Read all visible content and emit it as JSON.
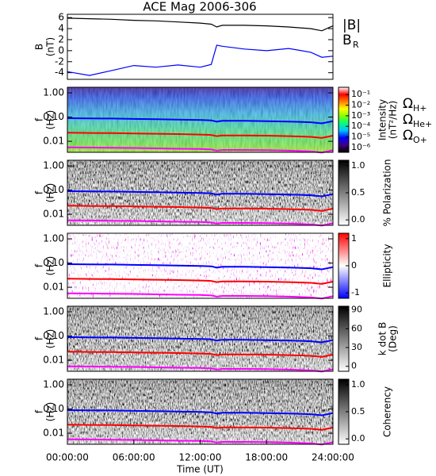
{
  "chart_data": [
    {
      "type": "line",
      "title": "ACE Mag 2006-306",
      "y_label": [
        "B",
        "(nT)"
      ],
      "x": [
        0,
        2,
        4,
        6,
        8,
        10,
        12,
        13,
        13.5,
        14,
        16,
        18,
        20,
        22,
        23,
        24
      ],
      "xlim": [
        0,
        24
      ],
      "ylim": [
        -5.2,
        6.6
      ],
      "yticks": [
        6,
        4,
        2,
        0,
        -2,
        -4
      ],
      "series": [
        {
          "name": "|B|",
          "color": "#000000",
          "values": [
            5.9,
            5.8,
            5.7,
            5.5,
            5.4,
            5.2,
            5.0,
            4.8,
            4.3,
            4.6,
            4.6,
            4.5,
            4.3,
            4.0,
            3.6,
            4.5
          ]
        },
        {
          "name": "B",
          "name_sub": "R",
          "color": "#0000ff",
          "values": [
            -3.8,
            -4.5,
            -3.6,
            -2.7,
            -3.0,
            -2.6,
            -3.0,
            -2.5,
            1.0,
            0.8,
            0.3,
            0.0,
            0.4,
            -0.3,
            -1.2,
            -1.0
          ]
        }
      ]
    },
    {
      "type": "spectrogram",
      "y_label": [
        "f",
        "(Hz)"
      ],
      "y_scale": "log",
      "ylim": [
        0.0035,
        1.7
      ],
      "yticks": [
        {
          "value": 1,
          "label": "1.00"
        },
        {
          "value": 0.1,
          "label": "0.10"
        },
        {
          "value": 0.01,
          "label": "0.01"
        }
      ],
      "x": [
        0,
        2,
        4,
        6,
        8,
        10,
        12,
        13,
        13.5,
        14,
        16,
        18,
        20,
        22,
        23,
        24
      ],
      "xlim": [
        0,
        24
      ],
      "series": [
        {
          "name": "Ω",
          "name_sub": "H+",
          "color": "#0000ff",
          "values": [
            0.09,
            0.088,
            0.087,
            0.084,
            0.082,
            0.079,
            0.076,
            0.073,
            0.065,
            0.07,
            0.07,
            0.068,
            0.065,
            0.061,
            0.055,
            0.068
          ]
        },
        {
          "name": "Ω",
          "name_sub": "He+",
          "color": "#ff0000",
          "values": [
            0.0225,
            0.022,
            0.0217,
            0.021,
            0.0205,
            0.0198,
            0.019,
            0.0183,
            0.0163,
            0.0175,
            0.0175,
            0.017,
            0.0163,
            0.0152,
            0.0137,
            0.017
          ]
        },
        {
          "name": "Ω",
          "name_sub": "O+",
          "color": "#ff00ff",
          "values": [
            0.0056,
            0.0055,
            0.0054,
            0.0053,
            0.0051,
            0.0049,
            0.0048,
            0.0046,
            0.0041,
            0.0044,
            0.0044,
            0.0043,
            0.0041,
            0.0038,
            0.0034,
            0.0043
          ]
        }
      ],
      "colorbar": {
        "label": [
          "Intensity",
          "(nT²/Hz)"
        ],
        "scale": "log",
        "lim": [
          3.5e-07,
          0.49
        ],
        "ticks": [
          {
            "value": 0.1,
            "label": "10⁻¹"
          },
          {
            "value": 0.01,
            "label": "10⁻²"
          },
          {
            "value": 0.001,
            "label": "10⁻³"
          },
          {
            "value": 0.0001,
            "label": "10⁻⁴"
          },
          {
            "value": 1e-05,
            "label": "10⁻⁵"
          },
          {
            "value": 1e-06,
            "label": "10⁻⁶"
          }
        ],
        "colors": [
          "#000000",
          "#400080",
          "#0000ff",
          "#00c0ff",
          "#00ff80",
          "#80ff00",
          "#ffff00",
          "#ff8000",
          "#ff0000",
          "#ffffff"
        ]
      }
    },
    {
      "type": "spectrogram",
      "y_label": [
        "f",
        "(Hz)"
      ],
      "y_scale": "log",
      "ylim": [
        0.0035,
        1.7
      ],
      "yticks": [
        {
          "value": 1,
          "label": "1.00"
        },
        {
          "value": 0.1,
          "label": "0.10"
        },
        {
          "value": 0.01,
          "label": "0.01"
        }
      ],
      "x": [
        0,
        2,
        4,
        6,
        8,
        10,
        12,
        13,
        13.5,
        14,
        16,
        18,
        20,
        22,
        23,
        24
      ],
      "xlim": [
        0,
        24
      ],
      "series": [
        {
          "color": "#0000ff",
          "values": [
            0.09,
            0.088,
            0.087,
            0.084,
            0.082,
            0.079,
            0.076,
            0.073,
            0.065,
            0.07,
            0.07,
            0.068,
            0.065,
            0.061,
            0.055,
            0.068
          ]
        },
        {
          "color": "#ff0000",
          "values": [
            0.0225,
            0.022,
            0.0217,
            0.021,
            0.0205,
            0.0198,
            0.019,
            0.0183,
            0.0163,
            0.0175,
            0.0175,
            0.017,
            0.0163,
            0.0152,
            0.0137,
            0.017
          ]
        },
        {
          "color": "#ff00ff",
          "values": [
            0.0056,
            0.0055,
            0.0054,
            0.0053,
            0.0051,
            0.0049,
            0.0048,
            0.0046,
            0.0041,
            0.0044,
            0.0044,
            0.0043,
            0.0041,
            0.0038,
            0.0034,
            0.0043
          ]
        }
      ],
      "colorbar": {
        "label": [
          "% Polarization"
        ],
        "lim": [
          -0.1,
          1.1
        ],
        "ticks": [
          {
            "value": 1,
            "label": "1.0"
          },
          0.5,
          {
            "value": 0,
            "label": "0.0"
          }
        ],
        "colors": [
          "#ffffff",
          "#000000"
        ]
      }
    },
    {
      "type": "spectrogram",
      "y_label": [
        "f",
        "(Hz)"
      ],
      "y_scale": "log",
      "ylim": [
        0.0035,
        1.7
      ],
      "yticks": [
        {
          "value": 1,
          "label": "1.00"
        },
        {
          "value": 0.1,
          "label": "0.10"
        },
        {
          "value": 0.01,
          "label": "0.01"
        }
      ],
      "x": [
        0,
        2,
        4,
        6,
        8,
        10,
        12,
        13,
        13.5,
        14,
        16,
        18,
        20,
        22,
        23,
        24
      ],
      "xlim": [
        0,
        24
      ],
      "series": [
        {
          "color": "#0000ff",
          "values": [
            0.09,
            0.088,
            0.087,
            0.084,
            0.082,
            0.079,
            0.076,
            0.073,
            0.065,
            0.07,
            0.07,
            0.068,
            0.065,
            0.061,
            0.055,
            0.068
          ]
        },
        {
          "color": "#ff0000",
          "values": [
            0.0225,
            0.022,
            0.0217,
            0.021,
            0.0205,
            0.0198,
            0.019,
            0.0183,
            0.0163,
            0.0175,
            0.0175,
            0.017,
            0.0163,
            0.0152,
            0.0137,
            0.017
          ]
        },
        {
          "color": "#ff00ff",
          "values": [
            0.0056,
            0.0055,
            0.0054,
            0.0053,
            0.0051,
            0.0049,
            0.0048,
            0.0046,
            0.0041,
            0.0044,
            0.0044,
            0.0043,
            0.0041,
            0.0038,
            0.0034,
            0.0043
          ]
        }
      ],
      "colorbar": {
        "label": [
          "Ellipticity"
        ],
        "lim": [
          -1.2,
          1.2
        ],
        "ticks": [
          1,
          0,
          -1
        ],
        "colors": [
          "#0000ff",
          "#ffffff",
          "#ff0000"
        ]
      }
    },
    {
      "type": "spectrogram",
      "y_label": [
        "f",
        "(Hz)"
      ],
      "y_scale": "log",
      "ylim": [
        0.0035,
        1.7
      ],
      "yticks": [
        {
          "value": 1,
          "label": "1.00"
        },
        {
          "value": 0.1,
          "label": "0.10"
        },
        {
          "value": 0.01,
          "label": "0.01"
        }
      ],
      "x": [
        0,
        2,
        4,
        6,
        8,
        10,
        12,
        13,
        13.5,
        14,
        16,
        18,
        20,
        22,
        23,
        24
      ],
      "xlim": [
        0,
        24
      ],
      "series": [
        {
          "color": "#0000ff",
          "values": [
            0.09,
            0.088,
            0.087,
            0.084,
            0.082,
            0.079,
            0.076,
            0.073,
            0.065,
            0.07,
            0.07,
            0.068,
            0.065,
            0.061,
            0.055,
            0.068
          ]
        },
        {
          "color": "#ff0000",
          "values": [
            0.0225,
            0.022,
            0.0217,
            0.021,
            0.0205,
            0.0198,
            0.019,
            0.0183,
            0.0163,
            0.0175,
            0.0175,
            0.017,
            0.0163,
            0.0152,
            0.0137,
            0.017
          ]
        },
        {
          "color": "#ff00ff",
          "values": [
            0.0056,
            0.0055,
            0.0054,
            0.0053,
            0.0051,
            0.0049,
            0.0048,
            0.0046,
            0.0041,
            0.0044,
            0.0044,
            0.0043,
            0.0041,
            0.0038,
            0.0034,
            0.0043
          ]
        }
      ],
      "colorbar": {
        "label": [
          "k dot B",
          "(Deg)"
        ],
        "lim": [
          -8,
          96
        ],
        "ticks": [
          90,
          60,
          30,
          0
        ],
        "colors": [
          "#ffffff",
          "#000000"
        ]
      }
    },
    {
      "type": "spectrogram",
      "y_label": [
        "f",
        "(Hz)"
      ],
      "y_scale": "log",
      "ylim": [
        0.0035,
        1.7
      ],
      "yticks": [
        {
          "value": 1,
          "label": "1.00"
        },
        {
          "value": 0.1,
          "label": "0.10"
        },
        {
          "value": 0.01,
          "label": "0.01"
        }
      ],
      "x": [
        0,
        2,
        4,
        6,
        8,
        10,
        12,
        13,
        13.5,
        14,
        16,
        18,
        20,
        22,
        23,
        24
      ],
      "xlim": [
        0,
        24
      ],
      "series": [
        {
          "color": "#0000ff",
          "values": [
            0.09,
            0.088,
            0.087,
            0.084,
            0.082,
            0.079,
            0.076,
            0.073,
            0.065,
            0.07,
            0.07,
            0.068,
            0.065,
            0.061,
            0.055,
            0.068
          ]
        },
        {
          "color": "#ff0000",
          "values": [
            0.0225,
            0.022,
            0.0217,
            0.021,
            0.0205,
            0.0198,
            0.019,
            0.0183,
            0.0163,
            0.0175,
            0.0175,
            0.017,
            0.0163,
            0.0152,
            0.0137,
            0.017
          ]
        },
        {
          "color": "#ff00ff",
          "values": [
            0.0056,
            0.0055,
            0.0054,
            0.0053,
            0.0051,
            0.0049,
            0.0048,
            0.0046,
            0.0041,
            0.0044,
            0.0044,
            0.0043,
            0.0041,
            0.0038,
            0.0034,
            0.0043
          ]
        }
      ],
      "colorbar": {
        "label": [
          "Coherency"
        ],
        "lim": [
          -0.1,
          1.1
        ],
        "ticks": [
          {
            "value": 1,
            "label": "1.0"
          },
          0.5,
          {
            "value": 0,
            "label": "0.0"
          }
        ],
        "colors": [
          "#ffffff",
          "#000000"
        ]
      },
      "x_label": "Time (UT)",
      "xticks": [
        {
          "value": 0,
          "label": "00:00:00"
        },
        {
          "value": 6,
          "label": "06:00:00"
        },
        {
          "value": 12,
          "label": "12:00:00"
        },
        {
          "value": 18,
          "label": "18:00:00"
        },
        {
          "value": 24,
          "label": "24:00:00"
        }
      ]
    }
  ]
}
